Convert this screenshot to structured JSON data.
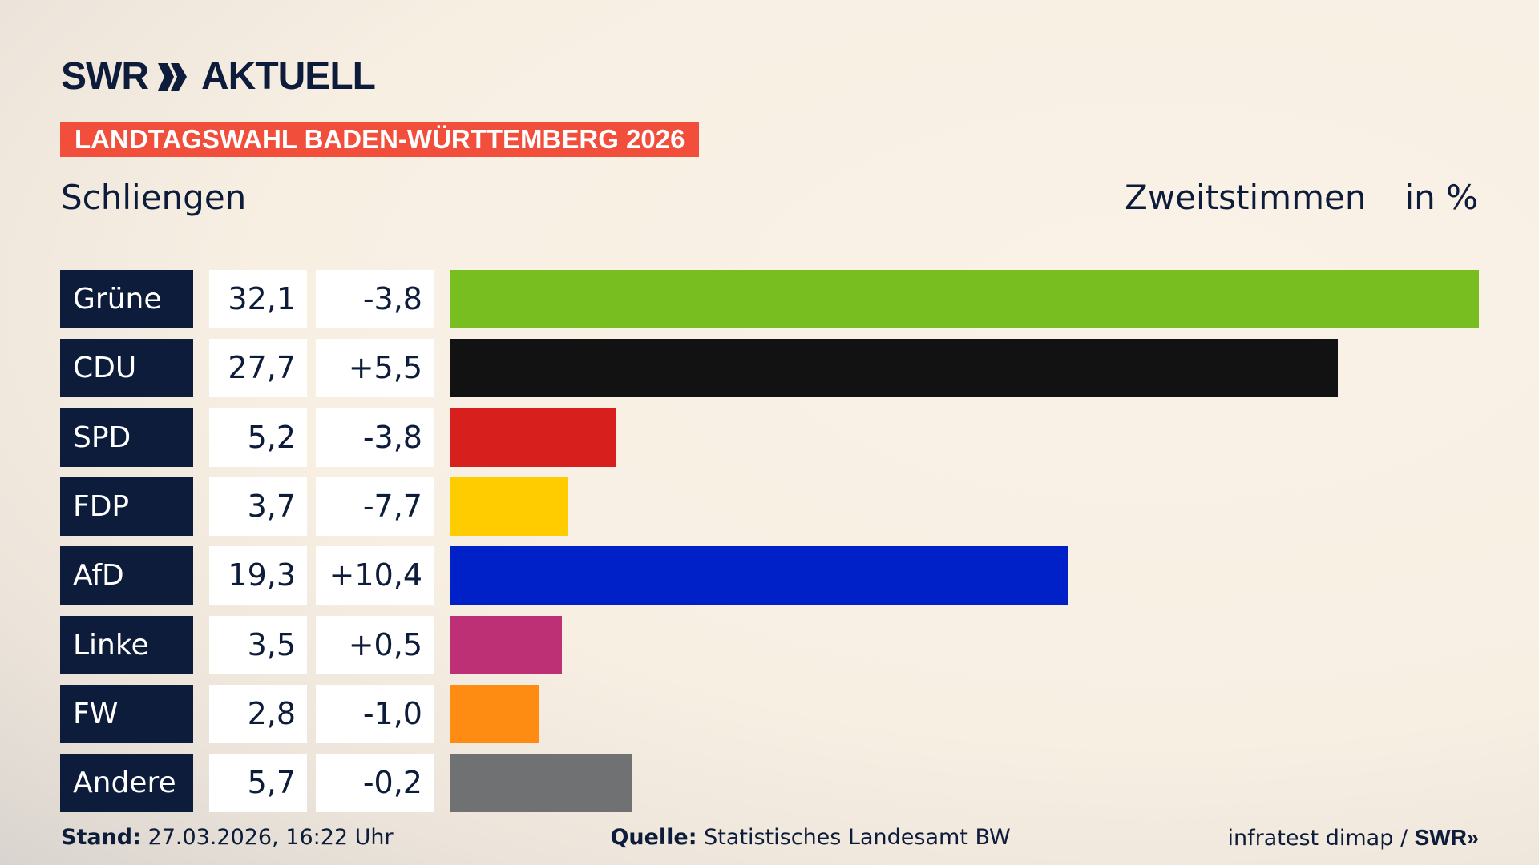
{
  "header": {
    "logo": "SWR AKTUELL",
    "logo_swr": "SWR",
    "logo_aktuell": "AKTUELL",
    "banner": "LANDTAGSWAHL BADEN-WÜRTTEMBERG 2026",
    "place": "Schliengen",
    "vote_type": "Zweitstimmen",
    "unit": "in %"
  },
  "chart_data": {
    "type": "bar",
    "orientation": "horizontal",
    "title": "Schliengen",
    "subtitle": "Zweitstimmen",
    "unit": "in %",
    "categories": [
      "Grüne",
      "CDU",
      "SPD",
      "FDP",
      "AfD",
      "Linke",
      "FW",
      "Andere"
    ],
    "values": [
      32.1,
      27.7,
      5.2,
      3.7,
      19.3,
      3.5,
      2.8,
      5.7
    ],
    "value_labels": [
      "32,1",
      "27,7",
      "5,2",
      "3,7",
      "19,3",
      "3,5",
      "2,8",
      "5,7"
    ],
    "diff_labels": [
      "-3,8",
      "+5,5",
      "-3,8",
      "-7,7",
      "+10,4",
      "+0,5",
      "-1,0",
      "-0,2"
    ],
    "colors": [
      "#78be20",
      "#121212",
      "#d71f1d",
      "#ffcc00",
      "#0021c8",
      "#be3075",
      "#ff8c12",
      "#707173"
    ],
    "xlim": [
      0,
      32.1
    ],
    "grid": false,
    "legend": "none"
  },
  "footer": {
    "stand_label": "Stand:",
    "stand": "27.03.2026, 16:22 Uhr",
    "source_label": "Quelle:",
    "source": "Statistisches Landesamt BW",
    "credit": "infratest dimap / ",
    "credit_logo": "SWR"
  }
}
